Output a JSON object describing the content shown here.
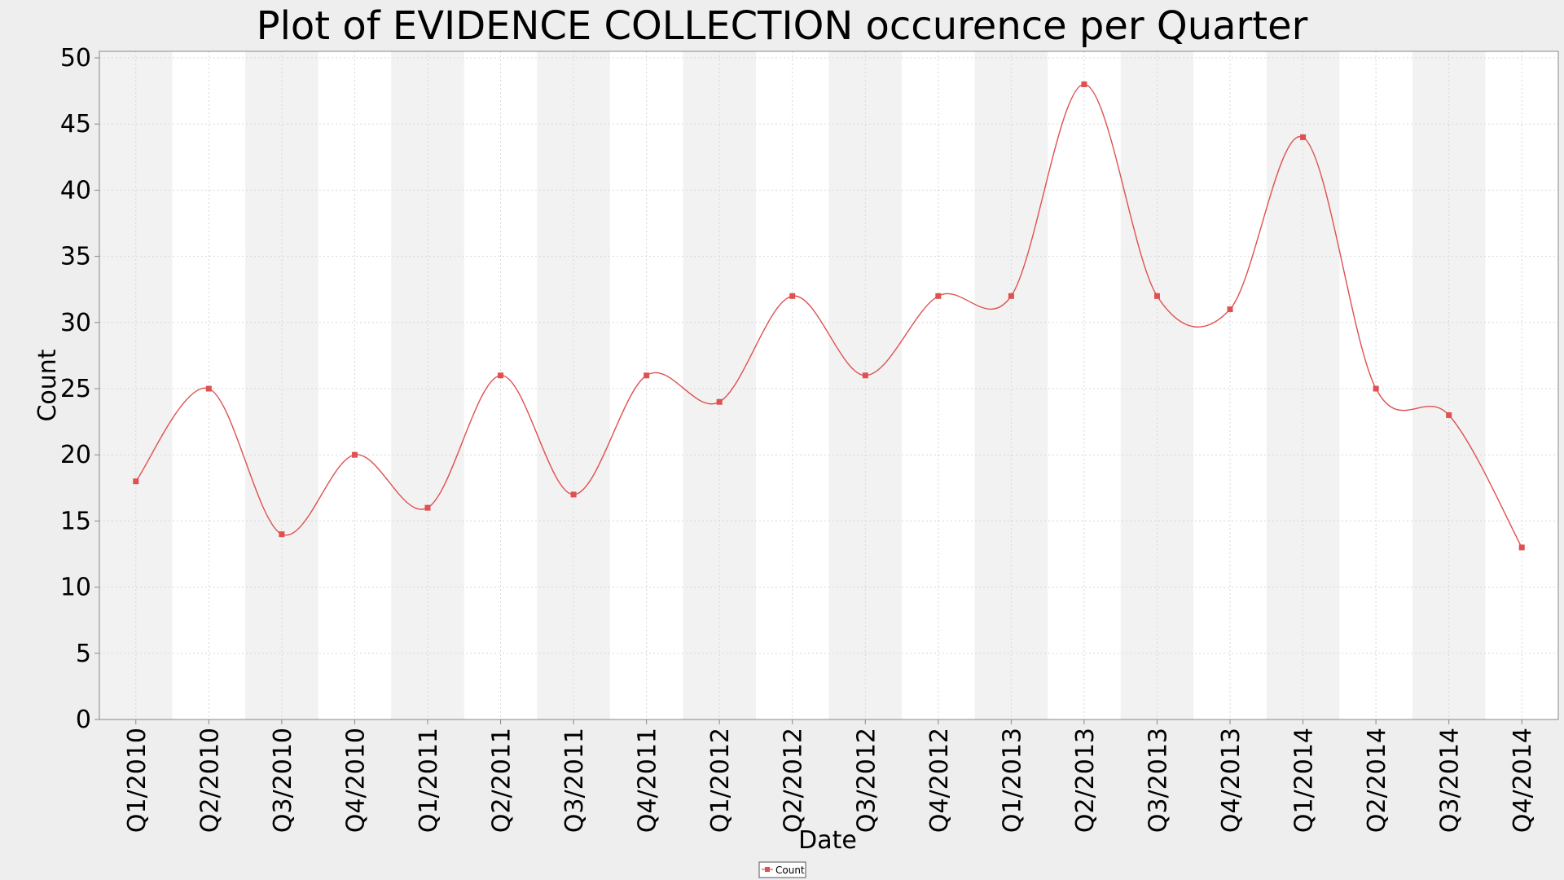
{
  "chart_data": {
    "type": "line",
    "title": "Plot of EVIDENCE COLLECTION occurence per Quarter",
    "xlabel": "Date",
    "ylabel": "Count",
    "categories": [
      "Q1/2010",
      "Q2/2010",
      "Q3/2010",
      "Q4/2010",
      "Q1/2011",
      "Q2/2011",
      "Q3/2011",
      "Q4/2011",
      "Q1/2012",
      "Q2/2012",
      "Q3/2012",
      "Q4/2012",
      "Q1/2013",
      "Q2/2013",
      "Q3/2013",
      "Q4/2013",
      "Q1/2014",
      "Q2/2014",
      "Q3/2014",
      "Q4/2014"
    ],
    "series": [
      {
        "name": "Count",
        "color": "#e05050",
        "values": [
          18,
          25,
          14,
          20,
          16,
          26,
          17,
          26,
          24,
          32,
          26,
          32,
          32,
          48,
          32,
          31,
          44,
          25,
          23,
          13
        ]
      }
    ],
    "ylim": [
      0,
      50
    ],
    "yticks": [
      0,
      5,
      10,
      15,
      20,
      25,
      30,
      35,
      40,
      45,
      50
    ],
    "grid": true,
    "legend": "bottom-center",
    "plot_background": "#ffffff",
    "band_color": "#f2f2f2"
  }
}
